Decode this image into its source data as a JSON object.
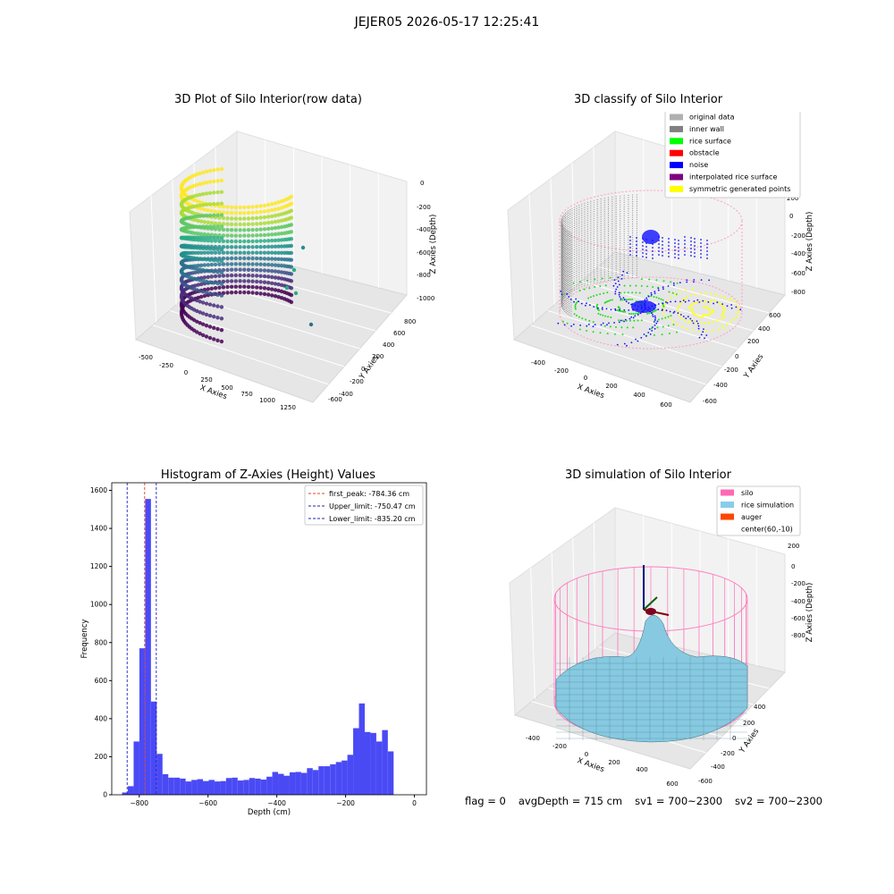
{
  "suptitle": "JEJER05 2026-05-17 12:25:41",
  "panels": {
    "raw": {
      "title": "3D Plot of Silo Interior(row data)",
      "xlabel": "X Axies",
      "ylabel": "Y Axies",
      "zlabel": "Z Axies (Depth)",
      "xticks": [
        "-500",
        "-250",
        "0",
        "250",
        "500",
        "750",
        "1000",
        "1250"
      ],
      "yticks": [
        "800",
        "600",
        "400",
        "200",
        "0",
        "-200",
        "-400",
        "-600"
      ],
      "zticks": [
        "0",
        "-200",
        "-400",
        "-600",
        "-800",
        "-1000"
      ]
    },
    "classify": {
      "title": "3D classify of Silo Interior",
      "xlabel": "X Axies",
      "ylabel": "Y Axies",
      "zlabel": "Z Axies (Depth)",
      "xticks": [
        "-400",
        "-200",
        "0",
        "200",
        "400",
        "600"
      ],
      "yticks": [
        "600",
        "400",
        "200",
        "0",
        "-200",
        "-400",
        "-600"
      ],
      "zticks": [
        "200",
        "0",
        "-200",
        "-400",
        "-600",
        "-800"
      ],
      "legend": [
        {
          "label": "original data",
          "color": "#b0b0b0"
        },
        {
          "label": "inner wall",
          "color": "#808080"
        },
        {
          "label": "rice surface",
          "color": "#00ff00"
        },
        {
          "label": "obstacle",
          "color": "#ff0000"
        },
        {
          "label": "noise",
          "color": "#0000ff"
        },
        {
          "label": "interpolated rice surface",
          "color": "#800080"
        },
        {
          "label": "symmetric generated points",
          "color": "#ffff00"
        }
      ]
    },
    "simulation": {
      "title": "3D simulation of Silo Interior",
      "xlabel": "X Axies",
      "ylabel": "Y Axies",
      "zlabel": "Z Axies (Depth)",
      "xticks": [
        "-400",
        "-200",
        "0",
        "200",
        "400",
        "600"
      ],
      "yticks": [
        "400",
        "200",
        "0",
        "-200",
        "-400",
        "-600"
      ],
      "zticks": [
        "200",
        "0",
        "-200",
        "-400",
        "-600",
        "-800"
      ],
      "legend": [
        {
          "label": "silo",
          "color": "#ff69b4"
        },
        {
          "label": "rice simulation",
          "color": "#87ceeb"
        },
        {
          "label": "auger",
          "color": "#ff4500"
        },
        {
          "label": "center(60,-10)",
          "color": ""
        }
      ]
    }
  },
  "status": {
    "flag": "flag = 0",
    "avg_depth": "avgDepth = 715 cm",
    "sv1": "sv1 = 700~2300",
    "sv2": "sv2 = 700~2300"
  },
  "chart_data": [
    {
      "type": "scatter",
      "title": "3D Plot of Silo Interior(row data)",
      "xlabel": "X Axies",
      "ylabel": "Y Axies",
      "zlabel": "Z Axies (Depth)",
      "xlim": [
        -500,
        1250
      ],
      "ylim": [
        -600,
        800
      ],
      "zlim": [
        -1000,
        0
      ],
      "colormap": "viridis",
      "grid": true
    },
    {
      "type": "scatter",
      "title": "3D classify of Silo Interior",
      "xlabel": "X Axies",
      "ylabel": "Y Axies",
      "zlabel": "Z Axies (Depth)",
      "xlim": [
        -400,
        600
      ],
      "ylim": [
        -600,
        600
      ],
      "zlim": [
        -800,
        200
      ],
      "series": [
        {
          "name": "original data",
          "color": "#b0b0b0"
        },
        {
          "name": "inner wall",
          "color": "#808080"
        },
        {
          "name": "rice surface",
          "color": "#00ff00"
        },
        {
          "name": "obstacle",
          "color": "#ff0000"
        },
        {
          "name": "noise",
          "color": "#0000ff"
        },
        {
          "name": "interpolated rice surface",
          "color": "#800080"
        },
        {
          "name": "symmetric generated points",
          "color": "#ffff00"
        }
      ],
      "legend": "top-right",
      "grid": true
    },
    {
      "type": "bar",
      "title": "Histogram of Z-Axies (Height) Values",
      "xlabel": "Depth (cm)",
      "ylabel": "Frequency",
      "xlim": [
        -880,
        35
      ],
      "ylim": [
        0,
        1640
      ],
      "xticks": [
        -800,
        -600,
        -400,
        -200,
        0
      ],
      "yticks": [
        0,
        200,
        400,
        600,
        800,
        1000,
        1200,
        1400,
        1600
      ],
      "bin_width": 16.8,
      "bin_start": -850,
      "values": [
        12,
        45,
        280,
        770,
        1555,
        490,
        215,
        108,
        90,
        90,
        85,
        70,
        78,
        82,
        72,
        78,
        70,
        72,
        88,
        90,
        75,
        78,
        88,
        85,
        80,
        95,
        120,
        110,
        100,
        118,
        120,
        115,
        140,
        130,
        150,
        150,
        160,
        172,
        180,
        210,
        350,
        480,
        330,
        325,
        280,
        340,
        228
      ],
      "bar_color": "#4a4af5",
      "lines": [
        {
          "label": "first_peak: -784.36 cm",
          "x": -784.36,
          "color": "#e04030",
          "style": "dashed"
        },
        {
          "label": "Upper_limit: -750.47 cm",
          "x": -750.47,
          "color": "#2020c0",
          "style": "dashed"
        },
        {
          "label": "Lower_limit: -835.20 cm",
          "x": -835.2,
          "color": "#2020c0",
          "style": "dashed"
        }
      ],
      "legend": "top-right",
      "grid": false
    },
    {
      "type": "area",
      "title": "3D simulation of Silo Interior",
      "xlabel": "X Axies",
      "ylabel": "Y Axies",
      "zlabel": "Z Axies (Depth)",
      "xlim": [
        -400,
        600
      ],
      "ylim": [
        -600,
        400
      ],
      "zlim": [
        -800,
        200
      ],
      "series": [
        {
          "name": "silo",
          "color": "#ff69b4"
        },
        {
          "name": "rice simulation",
          "color": "#87ceeb"
        },
        {
          "name": "auger",
          "color": "#ff4500"
        },
        {
          "name": "center(60,-10)"
        }
      ],
      "legend": "top-right",
      "grid": true
    }
  ]
}
